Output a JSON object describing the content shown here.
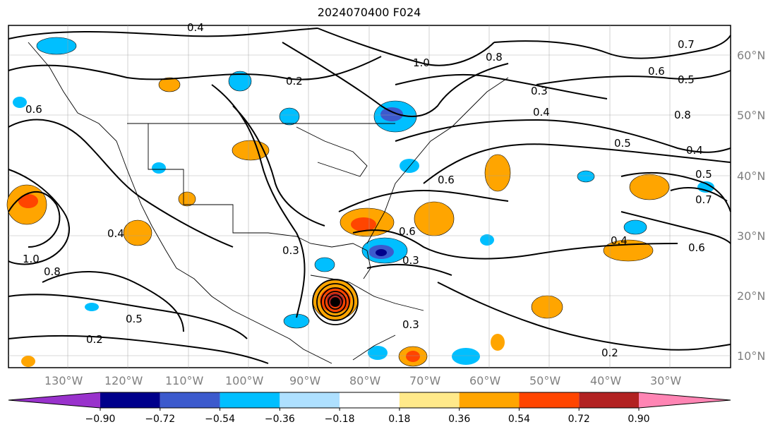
{
  "title": "2024070400 F024",
  "map": {
    "lat_labels": [
      "60°N",
      "50°N",
      "40°N",
      "30°N",
      "20°N",
      "10°N"
    ],
    "lon_labels": [
      "130°W",
      "120°W",
      "110°W",
      "100°W",
      "90°W",
      "80°W",
      "70°W",
      "60°W",
      "50°W",
      "40°W",
      "30°W"
    ],
    "contour_labels": [
      "0.2",
      "0.4",
      "0.6",
      "0.8",
      "1.0",
      "0.5",
      "0.7",
      "0.3",
      "0.4",
      "0.6",
      "0.8",
      "0.5",
      "0.4",
      "0.3",
      "0.6",
      "1.0",
      "0.8",
      "0.6",
      "0.4",
      "0.2",
      "0.5",
      "0.7",
      "0.6",
      "0.5",
      "0.4",
      "0.2",
      "0.3",
      "0.3"
    ]
  },
  "colorbar": {
    "ticks": [
      "−0.90",
      "−0.72",
      "−0.54",
      "−0.36",
      "−0.18",
      "0.18",
      "0.36",
      "0.54",
      "0.72",
      "0.90"
    ],
    "colors": [
      "#9932cc",
      "#00008b",
      "#3c5acd",
      "#00bfff",
      "#aee0ff",
      "#ffffff",
      "#ffe98a",
      "#ffa500",
      "#ff4500",
      "#b22222",
      "#ff85b4"
    ]
  }
}
